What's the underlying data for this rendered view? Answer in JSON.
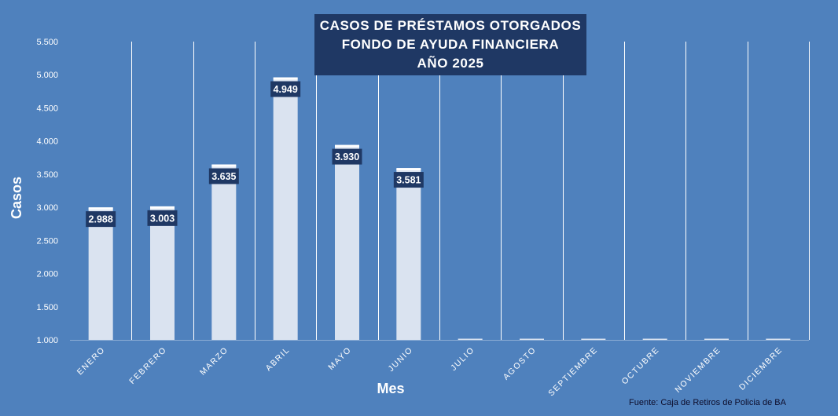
{
  "chart_data": {
    "type": "bar",
    "title": [
      "CASOS  DE  PRÉSTAMOS  OTORGADOS",
      "FONDO  DE  AYUDA  FINANCIERA",
      "AÑO  2025"
    ],
    "xlabel": "Mes",
    "ylabel": "Casos",
    "categories": [
      "ENERO",
      "FEBRERO",
      "MARZO",
      "ABRIL",
      "MAYO",
      "JUNIO",
      "JULIO",
      "AGOSTO",
      "SEPTIEMBRE",
      "OCTUBRE",
      "NOVIEMBRE",
      "DICIEMBRE"
    ],
    "values": [
      2988,
      3003,
      3635,
      4949,
      3930,
      3581,
      1000,
      1000,
      1000,
      1000,
      1000,
      1000
    ],
    "data_labels": [
      "2.988",
      "3.003",
      "3.635",
      "4.949",
      "3.930",
      "3.581",
      "",
      "",
      "",
      "",
      "",
      ""
    ],
    "ylim": [
      1000,
      5500
    ],
    "yticks": [
      1000,
      1500,
      2000,
      2500,
      3000,
      3500,
      4000,
      4500,
      5000,
      5500
    ],
    "ytick_labels": [
      "1.000",
      "1.500",
      "2.000",
      "2.500",
      "3.000",
      "3.500",
      "4.000",
      "4.500",
      "5.000",
      "5.500"
    ],
    "grid": "vertical separators between categories",
    "legend": "none",
    "source": "Fuente: Caja de Retiros de Policia de BA",
    "colors": {
      "background": "#4f81bd",
      "bar": "#dae3f0",
      "bar_cap": "#ffffff",
      "label_box": "#1f3864",
      "title_box": "#1f3864",
      "text": "#ffffff"
    }
  }
}
